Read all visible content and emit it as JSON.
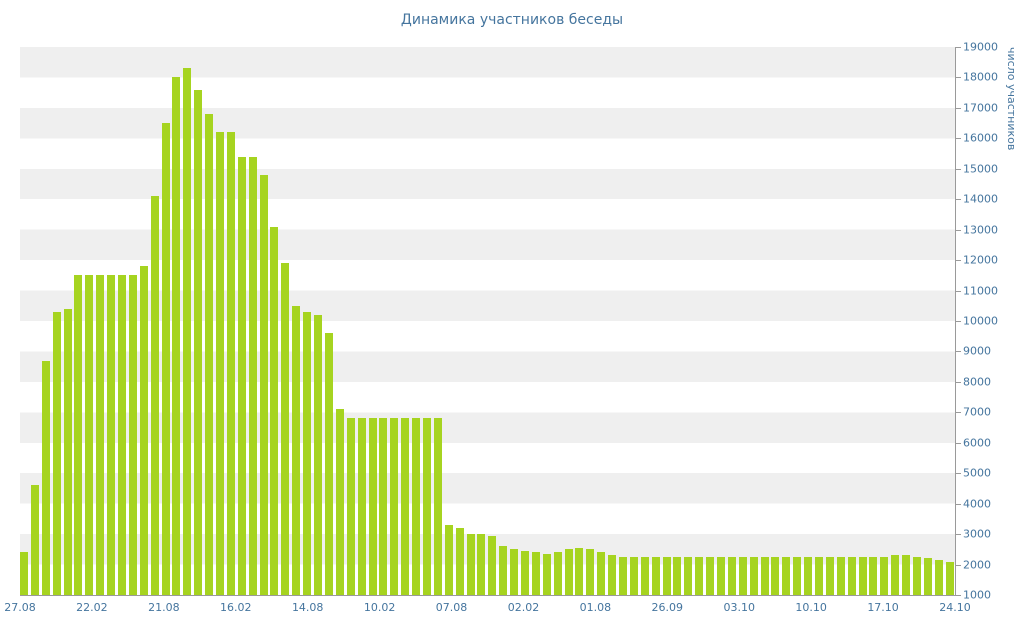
{
  "colors": {
    "bar": "#a6d420",
    "stripe": "#efefef",
    "axis_line": "#9a9a9a",
    "label_text": "#45759e"
  },
  "chart_data": {
    "type": "bar",
    "title": "Динамика участников беседы",
    "xlabel": "",
    "ylabel": "число участников",
    "ylim": [
      1000,
      19000
    ],
    "grid": "horizontal-stripes",
    "legend": "none",
    "y_ticks": [
      1000,
      2000,
      3000,
      4000,
      5000,
      6000,
      7000,
      8000,
      9000,
      10000,
      11000,
      12000,
      13000,
      14000,
      15000,
      16000,
      17000,
      18000,
      19000
    ],
    "x_tick_labels": [
      "27.08",
      "22.02",
      "21.08",
      "16.02",
      "14.08",
      "10.02",
      "07.08",
      "02.02",
      "01.08",
      "26.09",
      "03.10",
      "10.10",
      "17.10",
      "24.10"
    ],
    "values": [
      2400,
      4600,
      8700,
      10300,
      10400,
      11500,
      11500,
      11500,
      11500,
      11500,
      11500,
      11800,
      14100,
      16500,
      18000,
      18300,
      17600,
      16800,
      16200,
      16200,
      15400,
      15400,
      14800,
      13100,
      11900,
      10500,
      10300,
      10200,
      9600,
      7100,
      6800,
      6800,
      6800,
      6800,
      6800,
      6800,
      6800,
      6800,
      6800,
      3300,
      3200,
      3000,
      3000,
      2950,
      2600,
      2500,
      2450,
      2400,
      2350,
      2400,
      2500,
      2550,
      2500,
      2400,
      2300,
      2250,
      2250,
      2250,
      2250,
      2250,
      2250,
      2250,
      2250,
      2250,
      2250,
      2250,
      2250,
      2250,
      2250,
      2250,
      2250,
      2250,
      2250,
      2250,
      2250,
      2250,
      2250,
      2250,
      2250,
      2250,
      2300,
      2300,
      2250,
      2200,
      2150,
      2100
    ]
  }
}
